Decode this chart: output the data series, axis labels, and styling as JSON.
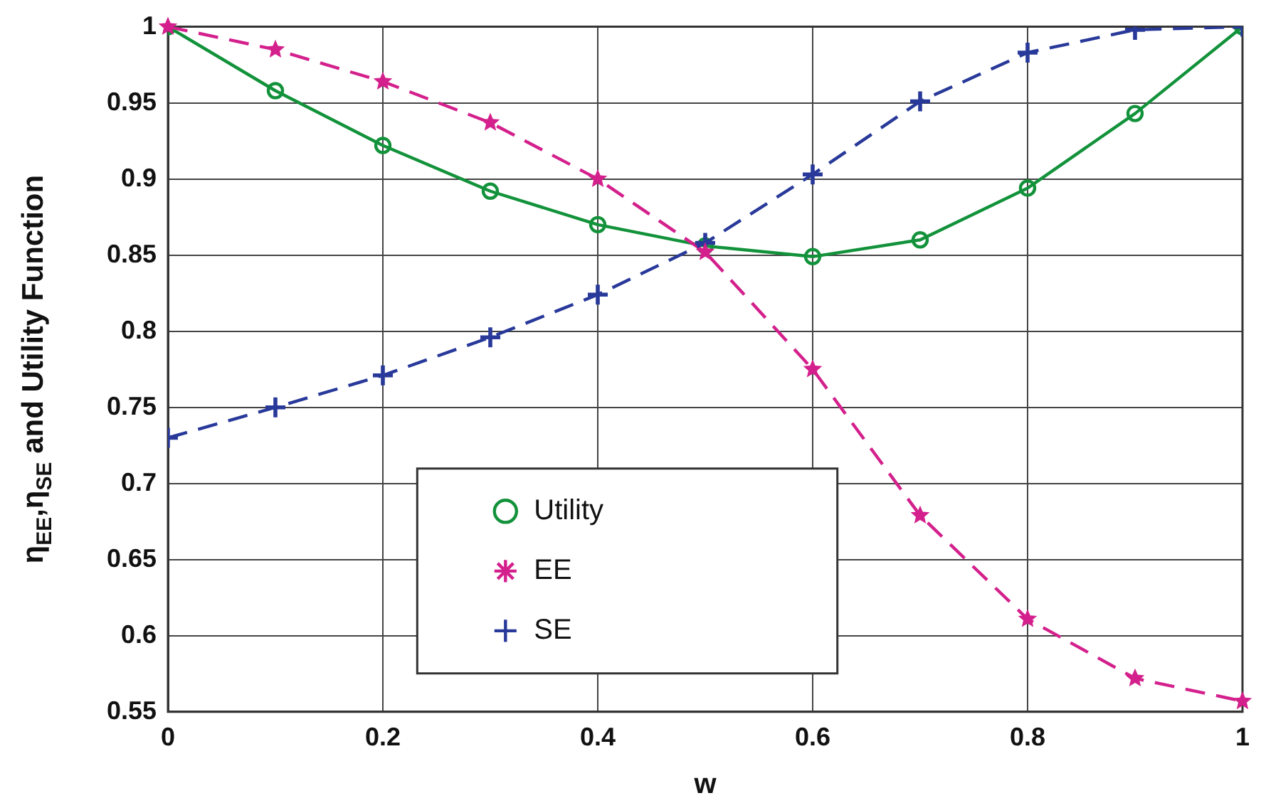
{
  "chart_data": {
    "type": "line",
    "xlabel": "w",
    "ylabel": "η$_{EE}$,η$_{SE}$ and Utility Function",
    "x": [
      0,
      0.1,
      0.2,
      0.3,
      0.4,
      0.5,
      0.6,
      0.7,
      0.8,
      0.9,
      1
    ],
    "series": [
      {
        "name": "Utility",
        "color": "#12923a",
        "marker": "circle",
        "line_style": "solid",
        "values": [
          1,
          0.958,
          0.922,
          0.892,
          0.87,
          0.856,
          0.849,
          0.86,
          0.894,
          0.943,
          1
        ]
      },
      {
        "name": "EE",
        "color": "#d4208c",
        "marker": "star",
        "line_style": "dashed",
        "values": [
          1,
          0.985,
          0.964,
          0.937,
          0.9,
          0.852,
          0.775,
          0.679,
          0.611,
          0.572,
          0.557
        ]
      },
      {
        "name": "SE",
        "color": "#28399a",
        "marker": "cross",
        "line_style": "dashed",
        "values": [
          0.73,
          0.75,
          0.771,
          0.796,
          0.824,
          0.858,
          0.903,
          0.951,
          0.983,
          0.998,
          1
        ]
      }
    ],
    "xlim": [
      0,
      1
    ],
    "xticks": [
      0,
      0.2,
      0.4,
      0.6,
      0.8,
      1
    ],
    "ylim": [
      0.55,
      1
    ],
    "yticks": [
      0.55,
      0.6,
      0.65,
      0.7,
      0.75,
      0.8,
      0.85,
      0.9,
      0.95,
      1
    ],
    "grid": true,
    "legend": "bottom"
  }
}
